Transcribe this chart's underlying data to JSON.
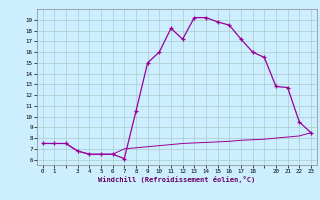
{
  "xlabel": "Windchill (Refroidissement éolien,°C)",
  "x_hours": [
    0,
    1,
    2,
    3,
    4,
    5,
    6,
    7,
    8,
    9,
    10,
    11,
    12,
    13,
    14,
    15,
    16,
    17,
    18,
    19,
    20,
    21,
    22,
    23
  ],
  "temp_line": [
    7.5,
    7.5,
    7.5,
    6.8,
    6.5,
    6.5,
    6.5,
    7.0,
    7.1,
    7.2,
    7.3,
    7.4,
    7.5,
    7.55,
    7.6,
    7.65,
    7.7,
    7.8,
    7.85,
    7.9,
    8.0,
    8.1,
    8.2,
    8.5
  ],
  "windchill_line": [
    7.5,
    7.5,
    7.5,
    6.8,
    6.5,
    6.5,
    6.5,
    6.1,
    10.5,
    15.0,
    16.0,
    18.2,
    17.2,
    19.2,
    19.2,
    18.8,
    18.5,
    17.2,
    16.0,
    15.5,
    12.8,
    12.7,
    9.5,
    8.5
  ],
  "ylim": [
    5.5,
    20.0
  ],
  "yticks": [
    6,
    7,
    8,
    9,
    10,
    11,
    12,
    13,
    14,
    15,
    16,
    17,
    18,
    19
  ],
  "xticks": [
    0,
    1,
    2,
    3,
    4,
    5,
    6,
    7,
    8,
    9,
    10,
    11,
    12,
    13,
    14,
    15,
    16,
    17,
    18,
    19,
    20,
    21,
    22,
    23
  ],
  "xlabels": [
    "0",
    "1",
    "",
    "3",
    "4",
    "5",
    "6",
    "7",
    "8",
    "9",
    "10",
    "11",
    "12",
    "13",
    "14",
    "15",
    "16",
    "17",
    "18",
    "",
    "20",
    "21",
    "22",
    "23"
  ],
  "line_color": "#990099",
  "bg_color": "#cceeff",
  "grid_color": "#aacccc"
}
